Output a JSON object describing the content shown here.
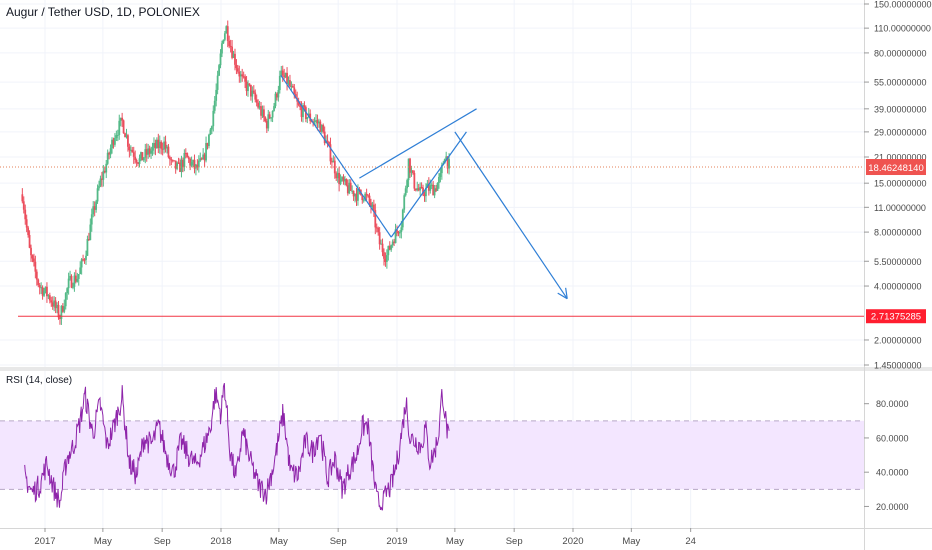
{
  "chart_data": {
    "type": "candlestick",
    "title": "Augur / Tether USD, 1D, POLONIEX",
    "y_scale": "log",
    "ylim": [
      1.45,
      150
    ],
    "y_ticks": [
      150,
      110,
      80,
      55,
      39,
      29,
      21,
      15,
      11,
      8,
      5.5,
      4,
      2,
      1.45
    ],
    "y_tick_labels": [
      "150.00000000",
      "110.00000000",
      "80.00000000",
      "55.00000000",
      "39.00000000",
      "29.00000000",
      "21.00000000",
      "15.00000000",
      "11.00000000",
      "8.00000000",
      "5.50000000",
      "4.00000000",
      "2.00000000",
      "1.45000000"
    ],
    "x_range": [
      "2016-11-15",
      "2020-12-31"
    ],
    "x_ticks": [
      {
        "date": "2017-01-01",
        "label": "2017"
      },
      {
        "date": "2017-05-01",
        "label": "May"
      },
      {
        "date": "2017-09-01",
        "label": "Sep"
      },
      {
        "date": "2018-01-01",
        "label": "2018"
      },
      {
        "date": "2018-05-01",
        "label": "May"
      },
      {
        "date": "2018-09-01",
        "label": "Sep"
      },
      {
        "date": "2019-01-01",
        "label": "2019"
      },
      {
        "date": "2019-05-01",
        "label": "May"
      },
      {
        "date": "2019-09-01",
        "label": "Sep"
      },
      {
        "date": "2020-01-01",
        "label": "2020"
      },
      {
        "date": "2020-05-01",
        "label": "May"
      },
      {
        "date": "2020-09-01",
        "label": "24"
      }
    ],
    "price_path": [
      [
        "2016-11-15",
        13
      ],
      [
        "2016-12-01",
        6
      ],
      [
        "2016-12-20",
        4
      ],
      [
        "2017-01-10",
        3.5
      ],
      [
        "2017-02-01",
        2.7
      ],
      [
        "2017-02-20",
        4.2
      ],
      [
        "2017-03-10",
        4.5
      ],
      [
        "2017-03-25",
        6
      ],
      [
        "2017-04-10",
        10
      ],
      [
        "2017-04-25",
        15
      ],
      [
        "2017-05-10",
        20
      ],
      [
        "2017-05-25",
        28
      ],
      [
        "2017-06-10",
        33
      ],
      [
        "2017-06-25",
        24
      ],
      [
        "2017-07-15",
        20
      ],
      [
        "2017-08-01",
        22
      ],
      [
        "2017-08-20",
        24
      ],
      [
        "2017-09-05",
        25
      ],
      [
        "2017-09-20",
        19
      ],
      [
        "2017-10-05",
        18
      ],
      [
        "2017-10-20",
        21
      ],
      [
        "2017-11-10",
        18
      ],
      [
        "2017-11-25",
        20
      ],
      [
        "2017-12-10",
        30
      ],
      [
        "2017-12-25",
        55
      ],
      [
        "2018-01-05",
        100
      ],
      [
        "2018-01-12",
        110
      ],
      [
        "2018-01-25",
        80
      ],
      [
        "2018-02-05",
        65
      ],
      [
        "2018-02-15",
        55
      ],
      [
        "2018-03-01",
        50
      ],
      [
        "2018-03-20",
        40
      ],
      [
        "2018-04-05",
        32
      ],
      [
        "2018-04-20",
        40
      ],
      [
        "2018-05-05",
        60
      ],
      [
        "2018-05-20",
        55
      ],
      [
        "2018-06-10",
        40
      ],
      [
        "2018-07-01",
        35
      ],
      [
        "2018-07-25",
        32
      ],
      [
        "2018-08-15",
        22
      ],
      [
        "2018-09-01",
        16
      ],
      [
        "2018-09-20",
        14
      ],
      [
        "2018-10-10",
        13
      ],
      [
        "2018-10-25",
        13
      ],
      [
        "2018-11-10",
        11
      ],
      [
        "2018-11-25",
        7
      ],
      [
        "2018-12-10",
        5.8
      ],
      [
        "2018-12-25",
        7.5
      ],
      [
        "2019-01-10",
        9
      ],
      [
        "2019-01-25",
        20
      ],
      [
        "2019-02-05",
        15
      ],
      [
        "2019-02-20",
        13
      ],
      [
        "2019-03-05",
        14
      ],
      [
        "2019-03-20",
        14
      ],
      [
        "2019-04-01",
        16
      ],
      [
        "2019-04-10",
        22
      ],
      [
        "2019-04-20",
        18.46
      ]
    ],
    "last_price": 18.4624814,
    "last_price_label": "18.46248140",
    "support_level": 2.71375285,
    "support_label": "2.71375285",
    "drawings": [
      {
        "type": "trendline",
        "from": [
          "2018-05-05",
          60
        ],
        "to": [
          "2018-12-20",
          7.5
        ]
      },
      {
        "type": "trendline",
        "from": [
          "2018-10-15",
          16
        ],
        "to": [
          "2019-06-15",
          39
        ]
      },
      {
        "type": "trendline",
        "from": [
          "2018-12-20",
          7.5
        ],
        "to": [
          "2019-05-25",
          29
        ]
      },
      {
        "type": "arrow",
        "from": [
          "2019-05-01",
          29
        ],
        "to": [
          "2019-12-20",
          3.4
        ]
      }
    ],
    "colors": {
      "up": "#53b987",
      "down": "#eb4d5c",
      "drawing": "#2f7fd6",
      "support": "#f23645",
      "price_line": "#e3825a",
      "rsi": "#8e24aa",
      "rsi_band": "#f3e6ff"
    },
    "rsi": {
      "title": "RSI (14, close)",
      "ylim": [
        15,
        95
      ],
      "band": [
        30,
        70
      ],
      "y_ticks": [
        80,
        60,
        40,
        20
      ],
      "y_tick_labels": [
        "80.0000",
        "60.0000",
        "40.0000",
        "20.0000"
      ],
      "path": [
        [
          "2016-11-20",
          38
        ],
        [
          "2016-12-05",
          28
        ],
        [
          "2016-12-20",
          32
        ],
        [
          "2017-01-05",
          45
        ],
        [
          "2017-01-20",
          30
        ],
        [
          "2017-02-01",
          22
        ],
        [
          "2017-02-15",
          48
        ],
        [
          "2017-03-01",
          55
        ],
        [
          "2017-03-15",
          70
        ],
        [
          "2017-03-25",
          85
        ],
        [
          "2017-04-10",
          62
        ],
        [
          "2017-04-25",
          80
        ],
        [
          "2017-05-10",
          55
        ],
        [
          "2017-05-25",
          68
        ],
        [
          "2017-06-10",
          84
        ],
        [
          "2017-06-25",
          45
        ],
        [
          "2017-07-10",
          38
        ],
        [
          "2017-07-25",
          60
        ],
        [
          "2017-08-10",
          56
        ],
        [
          "2017-08-25",
          67
        ],
        [
          "2017-09-10",
          50
        ],
        [
          "2017-09-25",
          40
        ],
        [
          "2017-10-10",
          58
        ],
        [
          "2017-10-25",
          50
        ],
        [
          "2017-11-10",
          44
        ],
        [
          "2017-11-25",
          54
        ],
        [
          "2017-12-10",
          66
        ],
        [
          "2017-12-20",
          86
        ],
        [
          "2018-01-01",
          74
        ],
        [
          "2018-01-08",
          92
        ],
        [
          "2018-01-20",
          52
        ],
        [
          "2018-02-01",
          36
        ],
        [
          "2018-02-15",
          64
        ],
        [
          "2018-03-01",
          48
        ],
        [
          "2018-03-20",
          32
        ],
        [
          "2018-04-05",
          28
        ],
        [
          "2018-04-20",
          44
        ],
        [
          "2018-05-01",
          60
        ],
        [
          "2018-05-10",
          75
        ],
        [
          "2018-05-25",
          40
        ],
        [
          "2018-06-10",
          38
        ],
        [
          "2018-06-25",
          58
        ],
        [
          "2018-07-10",
          52
        ],
        [
          "2018-07-25",
          64
        ],
        [
          "2018-08-10",
          36
        ],
        [
          "2018-08-25",
          48
        ],
        [
          "2018-09-10",
          30
        ],
        [
          "2018-09-25",
          42
        ],
        [
          "2018-10-10",
          50
        ],
        [
          "2018-10-20",
          66
        ],
        [
          "2018-11-01",
          68
        ],
        [
          "2018-11-10",
          46
        ],
        [
          "2018-11-20",
          24
        ],
        [
          "2018-12-01",
          20
        ],
        [
          "2018-12-10",
          28
        ],
        [
          "2018-12-20",
          32
        ],
        [
          "2019-01-01",
          46
        ],
        [
          "2019-01-10",
          62
        ],
        [
          "2019-01-20",
          82
        ],
        [
          "2019-01-28",
          60
        ],
        [
          "2019-02-10",
          58
        ],
        [
          "2019-02-20",
          55
        ],
        [
          "2019-03-01",
          66
        ],
        [
          "2019-03-10",
          46
        ],
        [
          "2019-03-20",
          52
        ],
        [
          "2019-03-28",
          62
        ],
        [
          "2019-04-05",
          88
        ],
        [
          "2019-04-12",
          70
        ],
        [
          "2019-04-20",
          56
        ]
      ]
    }
  }
}
